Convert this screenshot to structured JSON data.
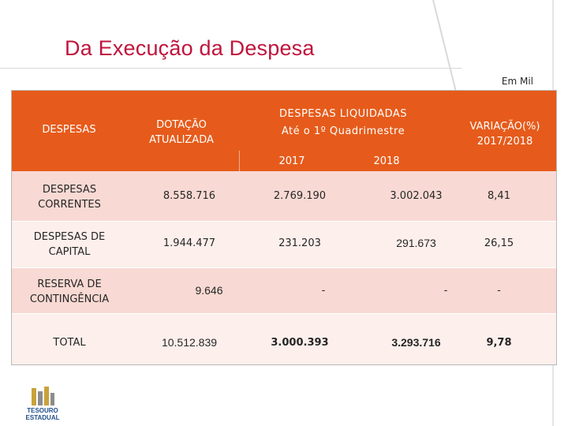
{
  "slide": {
    "title": "Da Execução da Despesa",
    "unit": "Em Mil"
  },
  "table": {
    "headers": {
      "despesas": "DESPESAS",
      "dotacao": "DOTAÇÃO ATUALIZADA",
      "liquidadas_line1": "DESPESAS LIQUIDADAS",
      "liquidadas_line2": "Até o 1º Quadrimestre",
      "year_2017": "2017",
      "year_2018": "2018",
      "variacao_line1": "VARIAÇÃO(%)",
      "variacao_line2": "2017/2018"
    },
    "rows": [
      {
        "name_line1": "DESPESAS",
        "name_line2": "CORRENTES",
        "dotacao": "8.558.716",
        "liq_2017": "2.769.190",
        "liq_2018": "3.002.043",
        "variacao": "8,41"
      },
      {
        "name_line1": "DESPESAS DE",
        "name_line2": "CAPITAL",
        "dotacao": "1.944.477",
        "liq_2017": "231.203",
        "liq_2018": "291.673",
        "variacao": "26,15"
      },
      {
        "name_line1": "RESERVA DE",
        "name_line2": "CONTINGÊNCIA",
        "dotacao": "9.646",
        "liq_2017": "-",
        "liq_2018": "-",
        "variacao": "-"
      },
      {
        "name_line1": "TOTAL",
        "name_line2": "",
        "dotacao": "10.512.839",
        "liq_2017": "3.000.393",
        "liq_2018": "3.293.716",
        "variacao": "9,78"
      }
    ]
  },
  "logo": {
    "text_line1": "TESOURO",
    "text_line2": "ESTADUAL",
    "accent_color": "#c8a23a"
  }
}
